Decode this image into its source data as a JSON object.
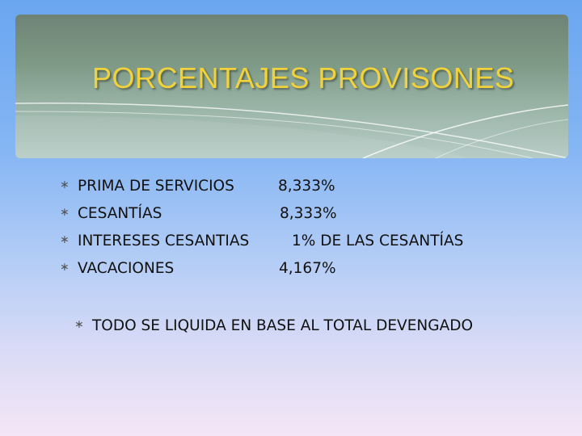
{
  "title": "PORCENTAJES PROVISONES",
  "bullet_icon": "asterisk-bullet-icon",
  "items": [
    {
      "label": "PRIMA DE SERVICIOS",
      "value": "8,333%"
    },
    {
      "label": "CESANTÍAS",
      "value": "8,333%"
    },
    {
      "label": "INTERESES CESANTIAS",
      "value": "1% DE LAS CESANTÍAS"
    },
    {
      "label": "VACACIONES",
      "value": "4,167%"
    }
  ],
  "note": "TODO SE LIQUIDA EN BASE AL TOTAL DEVENGADO",
  "colors": {
    "title": "#f2d23a",
    "text": "#111111"
  }
}
